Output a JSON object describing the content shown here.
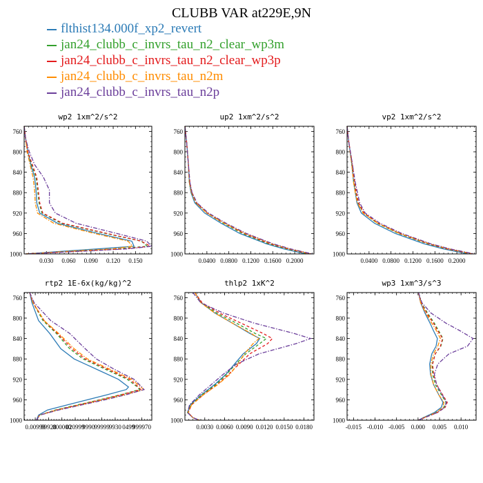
{
  "figure": {
    "title": "CLUBB VAR at229E,9N"
  },
  "colors": {
    "blue": "#2c7bb6",
    "green": "#33a02c",
    "red": "#e31a1c",
    "orange": "#ff8c00",
    "purple": "#6a3d9a"
  },
  "legend": [
    {
      "label": "flthist134.000f_xp2_revert",
      "color": "#2c7bb6"
    },
    {
      "label": "jan24_clubb_c_invrs_tau_n2_clear_wp3m",
      "color": "#33a02c"
    },
    {
      "label": "jan24_clubb_c_invrs_tau_n2_clear_wp3p",
      "color": "#e31a1c"
    },
    {
      "label": "jan24_clubb_c_invrs_tau_n2m",
      "color": "#ff8c00"
    },
    {
      "label": "jan24_clubb_c_invrs_tau_n2p",
      "color": "#6a3d9a"
    }
  ],
  "chart_data": [
    {
      "type": "line",
      "title": "wp2  1xm^2/s^2",
      "xlim": [
        0,
        0.172
      ],
      "ylim": [
        750,
        1000
      ],
      "xticks": [
        0.03,
        0.06,
        0.09,
        0.12,
        0.15
      ],
      "xtick_labels": [
        "0.030",
        "0.060",
        "0.090",
        "0.120",
        "0.150"
      ],
      "yticks": [
        760,
        800,
        840,
        880,
        920,
        960,
        1000
      ],
      "ytick_labels": [
        "760",
        "800",
        "840",
        "880",
        "920",
        "960",
        "1000"
      ],
      "y": [
        750,
        775,
        800,
        825,
        850,
        875,
        900,
        920,
        940,
        960,
        975,
        985,
        990,
        995,
        1000
      ],
      "series": [
        {
          "color": "#2c7bb6",
          "dash": "solid",
          "x": [
            0.0,
            0.002,
            0.005,
            0.009,
            0.014,
            0.016,
            0.017,
            0.021,
            0.045,
            0.1,
            0.145,
            0.148,
            0.1,
            0.05,
            0.002
          ]
        },
        {
          "color": "#33a02c",
          "dash": "dash",
          "x": [
            0.0,
            0.002,
            0.005,
            0.01,
            0.016,
            0.018,
            0.02,
            0.024,
            0.05,
            0.11,
            0.158,
            0.166,
            0.125,
            0.06,
            0.002
          ]
        },
        {
          "color": "#e31a1c",
          "dash": "dash",
          "x": [
            0.0,
            0.002,
            0.005,
            0.011,
            0.017,
            0.019,
            0.021,
            0.025,
            0.052,
            0.112,
            0.158,
            0.17,
            0.135,
            0.07,
            0.002
          ]
        },
        {
          "color": "#ff8c00",
          "dash": "dashdot",
          "x": [
            0.0,
            0.002,
            0.004,
            0.008,
            0.012,
            0.014,
            0.015,
            0.018,
            0.04,
            0.095,
            0.14,
            0.146,
            0.12,
            0.06,
            0.002
          ]
        },
        {
          "color": "#6a3d9a",
          "dash": "dashdot",
          "x": [
            0.0,
            0.002,
            0.007,
            0.014,
            0.026,
            0.034,
            0.034,
            0.042,
            0.07,
            0.125,
            0.165,
            0.172,
            0.14,
            0.075,
            0.002
          ]
        }
      ]
    },
    {
      "type": "line",
      "title": "up2  1xm^2/s^2",
      "xlim": [
        0,
        0.235
      ],
      "ylim": [
        750,
        1000
      ],
      "xticks": [
        0.04,
        0.08,
        0.12,
        0.16,
        0.2
      ],
      "xtick_labels": [
        "0.0400",
        "0.0800",
        "0.1200",
        "0.1600",
        "0.2000"
      ],
      "yticks": [
        760,
        800,
        840,
        880,
        920,
        960,
        1000
      ],
      "ytick_labels": [
        "760",
        "800",
        "840",
        "880",
        "920",
        "960",
        "1000"
      ],
      "y": [
        750,
        780,
        820,
        860,
        880,
        900,
        920,
        940,
        960,
        980,
        990,
        1000
      ],
      "series": [
        {
          "color": "#2c7bb6",
          "dash": "solid",
          "x": [
            0.0,
            0.003,
            0.006,
            0.008,
            0.011,
            0.018,
            0.036,
            0.066,
            0.1,
            0.148,
            0.18,
            0.22
          ]
        },
        {
          "color": "#33a02c",
          "dash": "dash",
          "x": [
            0.0,
            0.003,
            0.006,
            0.008,
            0.012,
            0.02,
            0.04,
            0.07,
            0.105,
            0.152,
            0.185,
            0.225
          ]
        },
        {
          "color": "#e31a1c",
          "dash": "dash",
          "x": [
            0.0,
            0.003,
            0.006,
            0.009,
            0.013,
            0.021,
            0.041,
            0.072,
            0.108,
            0.155,
            0.188,
            0.228
          ]
        },
        {
          "color": "#ff8c00",
          "dash": "dashdot",
          "x": [
            0.0,
            0.003,
            0.006,
            0.008,
            0.012,
            0.02,
            0.04,
            0.072,
            0.11,
            0.158,
            0.19,
            0.23
          ]
        },
        {
          "color": "#6a3d9a",
          "dash": "dashdot",
          "x": [
            0.0,
            0.003,
            0.006,
            0.009,
            0.013,
            0.022,
            0.043,
            0.075,
            0.112,
            0.16,
            0.192,
            0.232
          ]
        }
      ]
    },
    {
      "type": "line",
      "title": "vp2  1xm^2/s^2",
      "xlim": [
        0,
        0.235
      ],
      "ylim": [
        750,
        1000
      ],
      "xticks": [
        0.04,
        0.08,
        0.12,
        0.16,
        0.2
      ],
      "xtick_labels": [
        "0.0400",
        "0.0800",
        "0.1200",
        "0.1600",
        "0.2000"
      ],
      "yticks": [
        760,
        800,
        840,
        880,
        920,
        960,
        1000
      ],
      "ytick_labels": [
        "760",
        "800",
        "840",
        "880",
        "920",
        "960",
        "1000"
      ],
      "y": [
        750,
        780,
        820,
        860,
        880,
        900,
        920,
        940,
        960,
        980,
        990,
        1000
      ],
      "series": [
        {
          "color": "#2c7bb6",
          "dash": "solid",
          "x": [
            0.0,
            0.003,
            0.008,
            0.012,
            0.015,
            0.018,
            0.026,
            0.05,
            0.088,
            0.14,
            0.175,
            0.22
          ]
        },
        {
          "color": "#33a02c",
          "dash": "dash",
          "x": [
            0.0,
            0.003,
            0.008,
            0.013,
            0.016,
            0.02,
            0.03,
            0.055,
            0.094,
            0.146,
            0.18,
            0.226
          ]
        },
        {
          "color": "#e31a1c",
          "dash": "dash",
          "x": [
            0.0,
            0.003,
            0.009,
            0.014,
            0.017,
            0.021,
            0.031,
            0.057,
            0.096,
            0.148,
            0.182,
            0.228
          ]
        },
        {
          "color": "#ff8c00",
          "dash": "dashdot",
          "x": [
            0.0,
            0.003,
            0.008,
            0.012,
            0.015,
            0.019,
            0.029,
            0.056,
            0.096,
            0.15,
            0.185,
            0.23
          ]
        },
        {
          "color": "#6a3d9a",
          "dash": "dashdot",
          "x": [
            0.0,
            0.003,
            0.009,
            0.015,
            0.019,
            0.023,
            0.033,
            0.06,
            0.1,
            0.152,
            0.187,
            0.232
          ]
        }
      ]
    },
    {
      "type": "line",
      "title": "rtp2  1E-6x(kg/kg)^2",
      "xlim": [
        -0.5,
        11
      ],
      "ylim": [
        750,
        1000
      ],
      "xticks": [
        0.5,
        1.7,
        2.9,
        4.1,
        5.3,
        6.5,
        7.7,
        8.9,
        10.1
      ],
      "xtick_labels": [
        "0.00999",
        "99928",
        "000000",
        "020999",
        "9990",
        "99999",
        "9930",
        "0499",
        "999970"
      ],
      "yticks": [
        760,
        800,
        840,
        880,
        920,
        960,
        1000
      ],
      "ytick_labels": [
        "760",
        "800",
        "840",
        "880",
        "920",
        "960",
        "1000"
      ],
      "y": [
        750,
        770,
        805,
        830,
        860,
        880,
        900,
        920,
        935,
        940,
        950,
        960,
        970,
        980,
        990,
        1000
      ],
      "series": [
        {
          "color": "#2c7bb6",
          "dash": "solid",
          "x": [
            0.0,
            0.2,
            0.8,
            1.8,
            2.8,
            4.0,
            6.0,
            8.0,
            8.9,
            8.7,
            7.0,
            5.2,
            3.4,
            1.6,
            0.8,
            0.6
          ]
        },
        {
          "color": "#33a02c",
          "dash": "dash",
          "x": [
            0.0,
            0.3,
            1.2,
            2.4,
            3.6,
            4.8,
            6.8,
            8.8,
            9.7,
            9.9,
            8.2,
            6.3,
            4.3,
            2.3,
            0.9,
            0.6
          ]
        },
        {
          "color": "#e31a1c",
          "dash": "dash",
          "x": [
            0.0,
            0.3,
            1.3,
            2.5,
            3.8,
            5.0,
            7.0,
            9.0,
            9.8,
            10.0,
            8.3,
            6.4,
            4.4,
            2.4,
            0.9,
            0.6
          ]
        },
        {
          "color": "#ff8c00",
          "dash": "dashdot",
          "x": [
            0.0,
            0.3,
            1.3,
            2.6,
            4.0,
            5.2,
            7.2,
            9.2,
            10.0,
            10.3,
            8.6,
            6.6,
            4.6,
            2.5,
            0.9,
            0.6
          ]
        },
        {
          "color": "#6a3d9a",
          "dash": "dashdot",
          "x": [
            0.0,
            0.4,
            1.9,
            3.6,
            5.0,
            6.0,
            7.6,
            9.4,
            10.1,
            10.3,
            8.7,
            6.8,
            4.7,
            2.6,
            0.9,
            0.6
          ]
        }
      ]
    },
    {
      "type": "line",
      "title": "thlp2  1xK^2",
      "xlim": [
        0,
        0.0195
      ],
      "ylim": [
        750,
        1000
      ],
      "xticks": [
        0.003,
        0.006,
        0.009,
        0.012,
        0.015,
        0.018
      ],
      "xtick_labels": [
        "0.0030",
        "0.0060",
        "0.0090",
        "0.0120",
        "0.0150",
        "0.0180"
      ],
      "yticks": [
        760,
        800,
        840,
        880,
        920,
        960,
        1000
      ],
      "ytick_labels": [
        "760",
        "800",
        "840",
        "880",
        "920",
        "960",
        "1000"
      ],
      "y": [
        750,
        770,
        790,
        810,
        830,
        840,
        850,
        870,
        890,
        910,
        930,
        950,
        970,
        985,
        995,
        1000
      ],
      "series": [
        {
          "color": "#2c7bb6",
          "dash": "solid",
          "x": [
            0.0015,
            0.0025,
            0.0045,
            0.0072,
            0.0098,
            0.0113,
            0.0108,
            0.0088,
            0.0075,
            0.0062,
            0.0045,
            0.0025,
            0.0008,
            0.0004,
            0.0012,
            0.0022
          ]
        },
        {
          "color": "#33a02c",
          "dash": "dash",
          "x": [
            0.0015,
            0.0025,
            0.0048,
            0.0078,
            0.0106,
            0.0123,
            0.0113,
            0.0092,
            0.0077,
            0.0063,
            0.0047,
            0.0026,
            0.0009,
            0.0004,
            0.0012,
            0.0022
          ]
        },
        {
          "color": "#e31a1c",
          "dash": "dash",
          "x": [
            0.0015,
            0.0026,
            0.0052,
            0.0085,
            0.0118,
            0.0132,
            0.0125,
            0.0098,
            0.0082,
            0.0066,
            0.0049,
            0.0028,
            0.001,
            0.0005,
            0.0012,
            0.0022
          ]
        },
        {
          "color": "#ff8c00",
          "dash": "dashdot",
          "x": [
            0.0015,
            0.0024,
            0.0045,
            0.0072,
            0.01,
            0.0112,
            0.0103,
            0.009,
            0.008,
            0.0068,
            0.005,
            0.0028,
            0.001,
            0.0005,
            0.0012,
            0.0022
          ]
        },
        {
          "color": "#6a3d9a",
          "dash": "dashdot",
          "x": [
            0.0012,
            0.0024,
            0.0058,
            0.0105,
            0.0165,
            0.019,
            0.0168,
            0.0112,
            0.0078,
            0.0058,
            0.004,
            0.0022,
            0.0007,
            0.0004,
            0.0012,
            0.0022
          ]
        }
      ]
    },
    {
      "type": "line",
      "title": "wp3  1xm^3/s^3",
      "xlim": [
        -0.0165,
        0.0135
      ],
      "ylim": [
        750,
        1000
      ],
      "xticks": [
        -0.015,
        -0.01,
        -0.005,
        0.0,
        0.005,
        0.01
      ],
      "xtick_labels": [
        "-0.015",
        "-0.010",
        "-0.005",
        "0.000",
        "0.005",
        "0.010"
      ],
      "yticks": [
        760,
        800,
        840,
        880,
        920,
        960,
        1000
      ],
      "ytick_labels": [
        "760",
        "800",
        "840",
        "880",
        "920",
        "960",
        "1000"
      ],
      "y": [
        750,
        770,
        790,
        810,
        825,
        840,
        855,
        870,
        890,
        910,
        930,
        950,
        965,
        975,
        985,
        995,
        1000
      ],
      "series": [
        {
          "color": "#2c7bb6",
          "dash": "solid",
          "x": [
            0.0001,
            0.0006,
            0.0016,
            0.0028,
            0.0036,
            0.0045,
            0.0042,
            0.0032,
            0.0027,
            0.0029,
            0.0036,
            0.0048,
            0.0058,
            0.0054,
            0.0038,
            0.0012,
            0.0001
          ]
        },
        {
          "color": "#33a02c",
          "dash": "dash",
          "x": [
            0.0001,
            0.0008,
            0.0022,
            0.0038,
            0.0048,
            0.0058,
            0.0053,
            0.004,
            0.0033,
            0.0034,
            0.004,
            0.0054,
            0.0065,
            0.006,
            0.0042,
            0.0014,
            0.0001
          ]
        },
        {
          "color": "#e31a1c",
          "dash": "dash",
          "x": [
            0.0001,
            0.0007,
            0.002,
            0.0036,
            0.0046,
            0.0057,
            0.0052,
            0.004,
            0.0034,
            0.0036,
            0.0043,
            0.0057,
            0.0068,
            0.0063,
            0.0045,
            0.0015,
            0.0001
          ]
        },
        {
          "color": "#ff8c00",
          "dash": "dashdot",
          "x": [
            0.0001,
            0.0006,
            0.0018,
            0.0032,
            0.0043,
            0.0052,
            0.0046,
            0.0036,
            0.003,
            0.003,
            0.0036,
            0.0048,
            0.006,
            0.0058,
            0.0042,
            0.0014,
            0.0001
          ]
        },
        {
          "color": "#6a3d9a",
          "dash": "dashdot",
          "x": [
            0.0001,
            0.0009,
            0.003,
            0.0065,
            0.0098,
            0.0128,
            0.0115,
            0.0072,
            0.0046,
            0.0038,
            0.0043,
            0.0056,
            0.0066,
            0.0062,
            0.0045,
            0.0015,
            0.0001
          ]
        }
      ]
    }
  ]
}
